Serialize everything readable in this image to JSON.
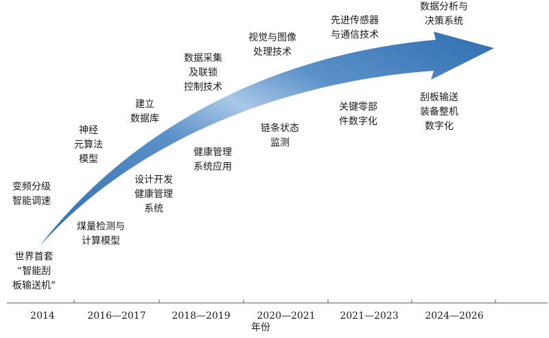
{
  "colors": {
    "arrow_dark": "#2f6eb0",
    "arrow_light": "#a9c8e6",
    "axis": "#555555",
    "text": "#1a1a1a"
  },
  "axis": {
    "title": "年份",
    "ticks": [
      "2014",
      "2016—2017",
      "2018—2019",
      "2020—2021",
      "2021—2023",
      "2024—2026"
    ]
  },
  "above_arrow": [
    {
      "id": "a1",
      "lines": [
        "变频分级",
        "智能调速"
      ]
    },
    {
      "id": "a2",
      "lines": [
        "神经",
        "元算法",
        "模型"
      ]
    },
    {
      "id": "a3",
      "lines": [
        "建立",
        "数据库"
      ]
    },
    {
      "id": "a4",
      "lines": [
        "数据采集",
        "及联锁",
        "控制技术"
      ]
    },
    {
      "id": "a5",
      "lines": [
        "视觉与图像",
        "处理技术"
      ]
    },
    {
      "id": "a6",
      "lines": [
        "先进传感器",
        "与通信技术"
      ]
    },
    {
      "id": "a7",
      "lines": [
        "数据分析与",
        "决策系统"
      ]
    }
  ],
  "below_arrow": [
    {
      "id": "b1",
      "lines": [
        "世界首套",
        "“智能刮",
        "板输送机”"
      ]
    },
    {
      "id": "b2",
      "lines": [
        "煤量检测与",
        "计算模型"
      ]
    },
    {
      "id": "b3",
      "lines": [
        "设计开发",
        "健康管理",
        "系统"
      ]
    },
    {
      "id": "b4",
      "lines": [
        "健康管理",
        "系统应用"
      ]
    },
    {
      "id": "b5",
      "lines": [
        "链条状态",
        "监测"
      ]
    },
    {
      "id": "b6",
      "lines": [
        "关键零部",
        "件数字化"
      ]
    },
    {
      "id": "b7",
      "lines": [
        "刮板输送",
        "装备整机",
        "数字化"
      ]
    }
  ]
}
